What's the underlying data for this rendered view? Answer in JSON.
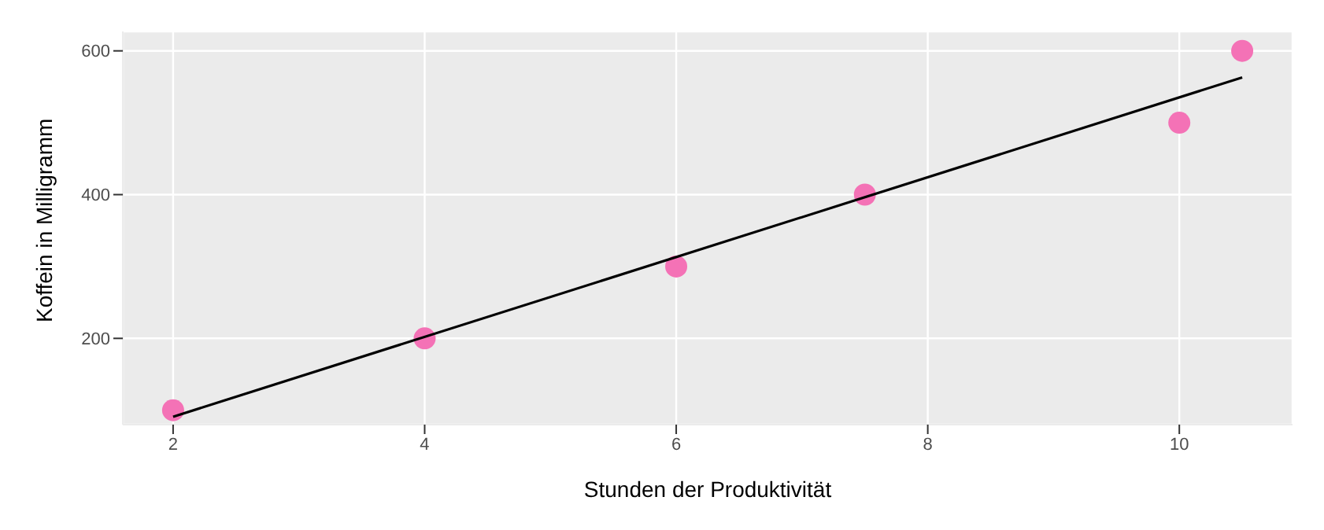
{
  "chart_data": {
    "type": "scatter",
    "xlabel": "Stunden der Produktivität",
    "ylabel": "Koffein in Milligramm",
    "series": [
      {
        "color": "#f472b6",
        "x": [
          2,
          4,
          6,
          7.5,
          10,
          10.5
        ],
        "values": [
          100,
          200,
          300,
          400,
          500,
          600
        ],
        "marker": "circle"
      },
      {
        "type": "line",
        "color": "#000000",
        "x": [
          2,
          10.5
        ],
        "values": [
          91,
          563
        ],
        "marker": "none"
      }
    ],
    "xlim": [
      1.6,
      10.9
    ],
    "xticks": [
      2,
      4,
      6,
      8,
      10
    ],
    "ylim": [
      80,
      627
    ],
    "yticks": [
      200,
      400,
      600
    ],
    "grid": true
  }
}
